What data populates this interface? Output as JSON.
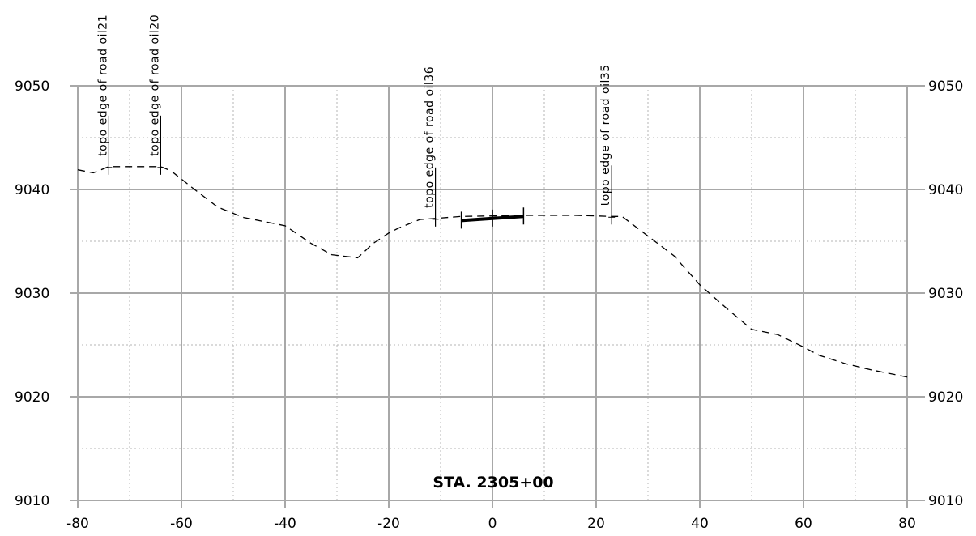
{
  "chart_data": {
    "type": "line",
    "title": "",
    "station_label": "STA. 2305+00",
    "xlabel": "",
    "ylabel": "",
    "xlim": [
      -80,
      80
    ],
    "ylim": [
      9010,
      9050
    ],
    "x_ticks": [
      -80,
      -60,
      -40,
      -20,
      0,
      20,
      40,
      60,
      80
    ],
    "x_tick_labels": [
      "-80",
      "-60",
      "-40",
      "-20",
      "0",
      "20",
      "40",
      "60",
      "80"
    ],
    "y_ticks": [
      9010,
      9020,
      9030,
      9040,
      9050
    ],
    "y_tick_labels": [
      "9010",
      "9020",
      "9030",
      "9040",
      "9050"
    ],
    "x_minor_step": 10,
    "y_minor_step": 5,
    "grid": true,
    "series": [
      {
        "style": "dashed",
        "x": [
          -80,
          -77,
          -74,
          -68,
          -64,
          -62,
          -58,
          -53,
          -48,
          -43,
          -40,
          -35,
          -31,
          -26,
          -23,
          -20,
          -18,
          -14,
          -11,
          -6,
          6,
          10,
          16,
          23,
          25,
          30,
          35,
          40,
          45,
          50,
          55,
          60,
          63,
          68,
          73,
          80
        ],
        "y": [
          9041.9,
          9041.6,
          9042.2,
          9042.2,
          9042.2,
          9041.8,
          9040.2,
          9038.3,
          9037.3,
          9036.8,
          9036.5,
          9034.8,
          9033.7,
          9033.4,
          9034.8,
          9035.8,
          9036.3,
          9037.1,
          9037.2,
          9037.4,
          9037.5,
          9037.5,
          9037.5,
          9037.4,
          9037.4,
          9035.5,
          9033.6,
          9030.8,
          9028.6,
          9026.5,
          9026.0,
          9024.8,
          9024.0,
          9023.2,
          9022.6,
          9021.9
        ]
      },
      {
        "style": "solid-thick",
        "x": [
          -6,
          0,
          6
        ],
        "y": [
          9037.0,
          9037.2,
          9037.4
        ]
      }
    ],
    "annotations": [
      {
        "text": "topo  edge  of  road  oil21",
        "x": -74,
        "y": 9042.2
      },
      {
        "text": "topo  edge  of  road  oil20",
        "x": -64,
        "y": 9042.2
      },
      {
        "text": "topo  edge  of  road  oil36",
        "x": -11,
        "y": 9037.2
      },
      {
        "text": "topo  edge  of  road  oil35",
        "x": 23,
        "y": 9037.4
      }
    ]
  }
}
